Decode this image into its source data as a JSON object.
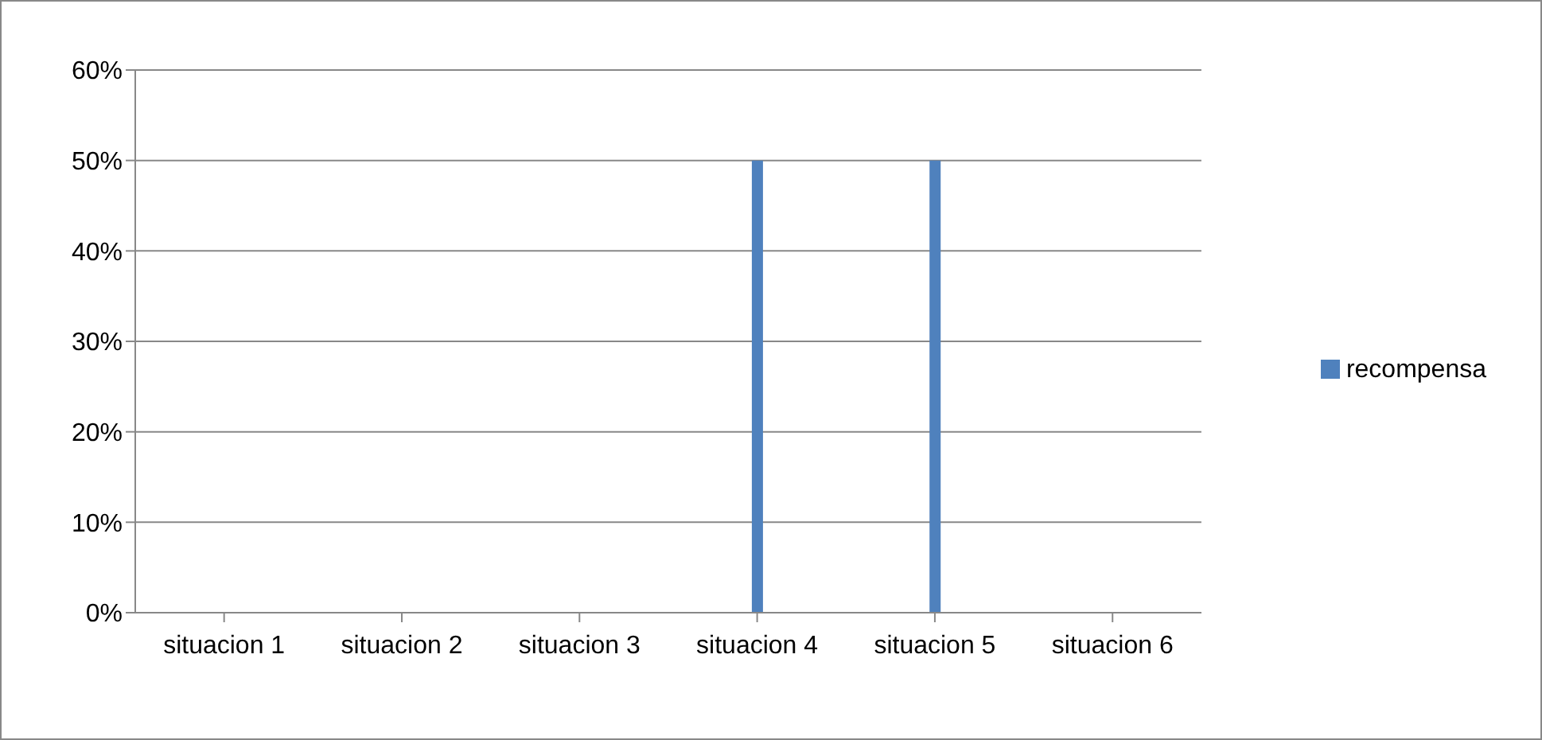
{
  "chart_data": {
    "type": "bar",
    "categories": [
      "situacion 1",
      "situacion 2",
      "situacion 3",
      "situacion 4",
      "situacion 5",
      "situacion 6"
    ],
    "series": [
      {
        "name": "recompensa",
        "color": "#4f81bd",
        "values": [
          0,
          0,
          0,
          50,
          50,
          0
        ]
      }
    ],
    "ylim": [
      0,
      60
    ],
    "yticks": [
      {
        "value": 0,
        "label": "0%"
      },
      {
        "value": 10,
        "label": "10%"
      },
      {
        "value": 20,
        "label": "20%"
      },
      {
        "value": 30,
        "label": "30%"
      },
      {
        "value": 40,
        "label": "40%"
      },
      {
        "value": 50,
        "label": "50%"
      },
      {
        "value": 60,
        "label": "60%"
      }
    ],
    "grid": "y",
    "legend": "right"
  }
}
